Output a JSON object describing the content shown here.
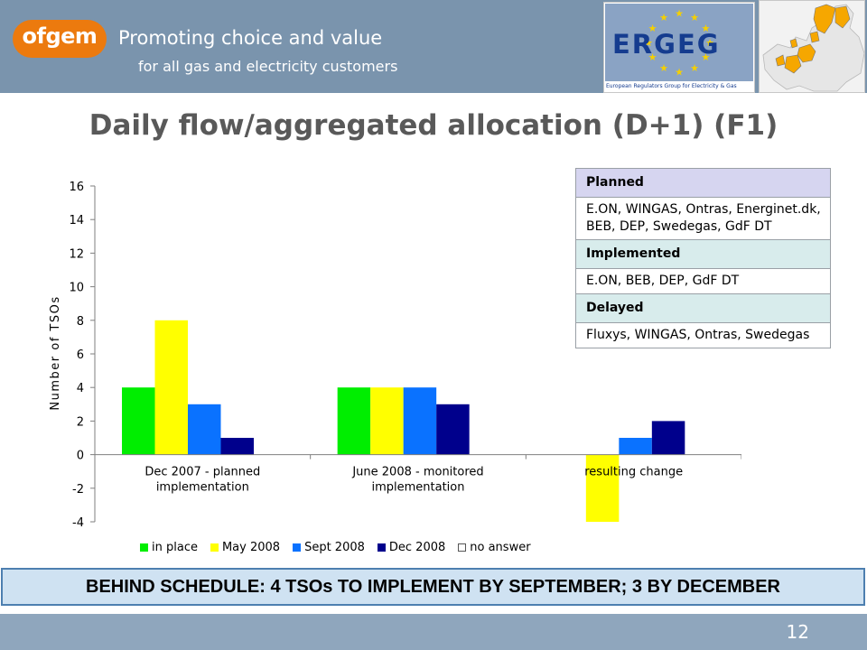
{
  "header": {
    "logo": "ofgem",
    "tagline_line1": "Promoting choice and value",
    "tagline_line2": "for all gas and electricity customers",
    "ergeg_letters": "ERGEG",
    "ergeg_subtitle": "European Regulators Group for Electricity & Gas"
  },
  "title": "Daily flow/aggregated allocation (D+1) (F1)",
  "chart_data": {
    "type": "bar",
    "title": "",
    "xlabel": "",
    "ylabel": "Number of TSOs",
    "ylim": [
      -4,
      16
    ],
    "yticks": [
      -4,
      -2,
      0,
      2,
      4,
      6,
      8,
      10,
      12,
      14,
      16
    ],
    "grid": false,
    "legend_position": "bottom",
    "categories": [
      [
        "Dec 2007 - planned",
        "implementation"
      ],
      [
        "June 2008 - monitored",
        "implementation"
      ],
      [
        "resulting change"
      ]
    ],
    "series": [
      {
        "name": "in place",
        "color": "#00ee00",
        "values": [
          4,
          4,
          0
        ]
      },
      {
        "name": "May 2008",
        "color": "#ffff00",
        "values": [
          8,
          4,
          -4
        ]
      },
      {
        "name": "Sept 2008",
        "color": "#0a72ff",
        "values": [
          3,
          4,
          1
        ]
      },
      {
        "name": "Dec 2008",
        "color": "#00008c",
        "values": [
          1,
          3,
          2
        ]
      },
      {
        "name": "no answer",
        "color": "#ffffff",
        "values": [
          0,
          0,
          0
        ]
      }
    ]
  },
  "table": {
    "planned_label": "Planned",
    "planned_text": "E.ON, WINGAS, Ontras, Energinet.dk, BEB, DEP, Swedegas, GdF DT",
    "implemented_label": "Implemented",
    "implemented_text": "E.ON, BEB, DEP, GdF DT",
    "delayed_label": "Delayed",
    "delayed_text": "Fluxys, WINGAS, Ontras, Swedegas"
  },
  "banner": "BEHIND SCHEDULE: 4 TSOs TO IMPLEMENT BY SEPTEMBER; 3 BY  DECEMBER",
  "page_number": "12",
  "colors": {
    "header_band": "#7a94ad",
    "footer_band": "#8fa6bd",
    "logo_orange": "#ec7a0e",
    "title_grey": "#595959",
    "banner_fill": "#cfe2f2",
    "banner_border": "#4d7fb0"
  }
}
